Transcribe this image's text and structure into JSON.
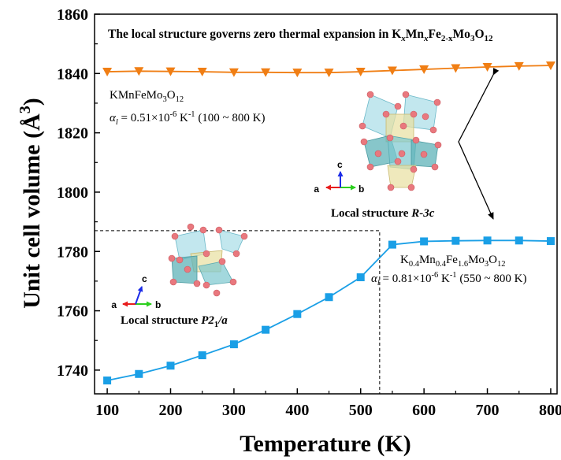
{
  "chart_data": {
    "type": "line",
    "title": {
      "prefix": "The local structure governs zero thermal expansion in K",
      "x1": "x",
      "mn": "Mn",
      "x2": "x",
      "fe": "Fe",
      "sub_fe": "2-x",
      "mo": "Mo",
      "sub_mo": "3",
      "o": "O",
      "sub_o": "12"
    },
    "xlabel": "Temperature (K)",
    "ylabel": {
      "text": "Unit cell volume (Å",
      "sup": "3",
      "close": ")"
    },
    "xlim": [
      80,
      810
    ],
    "ylim": [
      1732,
      1860
    ],
    "xticks": [
      100,
      200,
      300,
      400,
      500,
      600,
      700,
      800
    ],
    "yticks": [
      1740,
      1760,
      1780,
      1800,
      1820,
      1840,
      1860
    ],
    "series": [
      {
        "marker": "triangle-down",
        "color": "#f07e14",
        "x": [
          100,
          150,
          200,
          250,
          300,
          350,
          400,
          450,
          500,
          550,
          600,
          650,
          700,
          750,
          800
        ],
        "y": [
          1840.6,
          1840.8,
          1840.7,
          1840.6,
          1840.4,
          1840.4,
          1840.3,
          1840.3,
          1840.6,
          1841.0,
          1841.4,
          1841.8,
          1842.2,
          1842.5,
          1842.7
        ]
      },
      {
        "marker": "square",
        "color": "#1a9fe6",
        "x": [
          100,
          150,
          200,
          250,
          300,
          350,
          400,
          450,
          500,
          550,
          600,
          650,
          700,
          750,
          800
        ],
        "y": [
          1736.5,
          1738.7,
          1741.5,
          1745.0,
          1748.7,
          1753.6,
          1758.9,
          1764.6,
          1771.3,
          1782.3,
          1783.4,
          1783.6,
          1783.7,
          1783.7,
          1783.5
        ]
      }
    ],
    "annotations": {
      "kmn1": {
        "formula": {
          "a": "KMnFeMo",
          "s1": "3",
          "b": "O",
          "s2": "12"
        },
        "coef": {
          "alpha": "α",
          "sub": "l",
          "eq": " = 0.51×10",
          "sup": "-6",
          "rest": " K",
          "sup2": "-1",
          "range": " (100 ~ 800 K)"
        }
      },
      "kmn2": {
        "formula": {
          "a": "K",
          "s1": "0.4",
          "b": "Mn",
          "s2": "0.4",
          "c": "Fe",
          "s3": "1.6",
          "d": "Mo",
          "s4": "3",
          "e": "O",
          "s5": "12"
        },
        "coef": {
          "alpha": "α",
          "sub": "l",
          "eq": " = 0.81×10",
          "sup": "-6",
          "rest": " K",
          "sup2": "-1",
          "range": " (550 ~ 800 K)"
        }
      },
      "local_r3c": {
        "prefix": "Local structure ",
        "italic": "R-3c"
      },
      "local_p21a": {
        "prefix": "Local structure ",
        "italic_a": "P2",
        "sub": "1",
        "italic_b": "/a"
      },
      "axes_r3c": {
        "a": "a",
        "b": "b",
        "c": "c"
      },
      "axes_p21a": {
        "a": "a",
        "b": "b",
        "c": "c"
      },
      "dashed_box": {
        "x_end": 530,
        "y_top": 1787
      }
    },
    "grid": false,
    "legend": "none"
  }
}
